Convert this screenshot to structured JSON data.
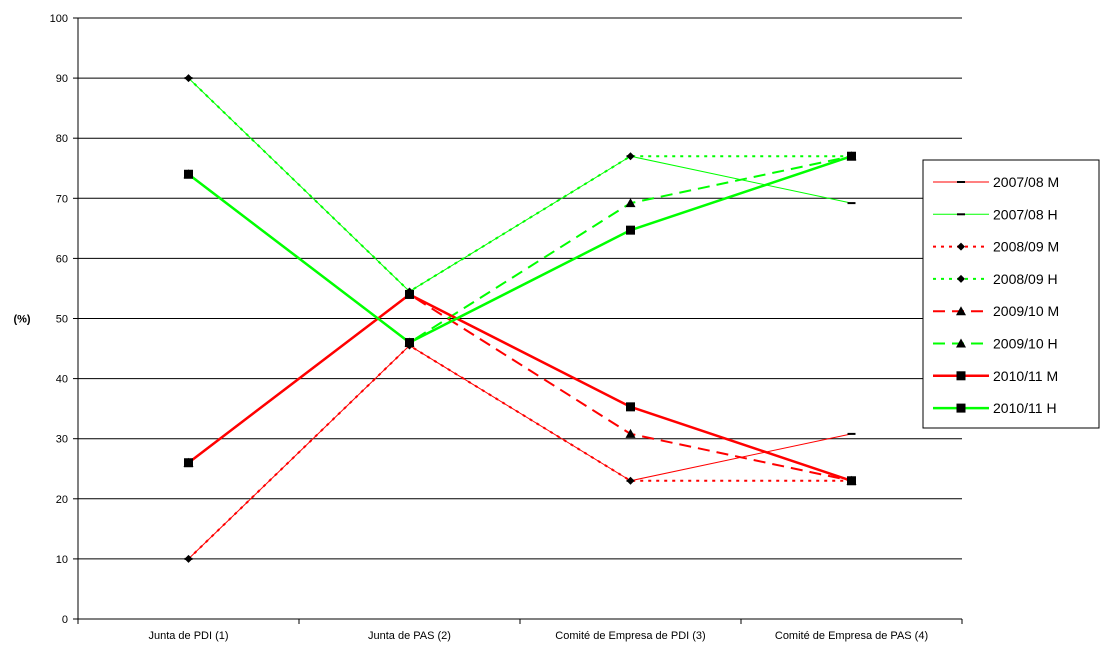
{
  "chart_data": {
    "type": "line",
    "title": "",
    "xlabel": "",
    "ylabel": "(%)",
    "ylim": [
      0,
      100
    ],
    "yticks": [
      0,
      10,
      20,
      30,
      40,
      50,
      60,
      70,
      80,
      90,
      100
    ],
    "grid": "horizontal",
    "legend_position": "right",
    "categories": [
      "Junta de PDI (1)",
      "Junta de PAS (2)",
      "Comité de Empresa de PDI (3)",
      "Comité de Empresa de PAS (4)"
    ],
    "series": [
      {
        "name": "2007/08 M",
        "values": [
          10,
          45.5,
          23,
          30.8
        ],
        "color": "#ff0000",
        "style": "solid-thin",
        "marker": "dash"
      },
      {
        "name": "2007/08 H",
        "values": [
          90,
          54.5,
          77,
          69.2
        ],
        "color": "#00ff00",
        "style": "solid-thin",
        "marker": "dash"
      },
      {
        "name": "2008/09 M",
        "values": [
          10,
          45.5,
          23,
          23
        ],
        "color": "#ff0000",
        "style": "dotted",
        "marker": "diamond"
      },
      {
        "name": "2008/09 H",
        "values": [
          90,
          54.5,
          77,
          77
        ],
        "color": "#00ff00",
        "style": "dotted",
        "marker": "diamond"
      },
      {
        "name": "2009/10 M",
        "values": [
          26,
          54,
          30.8,
          23
        ],
        "color": "#ff0000",
        "style": "dashed",
        "marker": "triangle"
      },
      {
        "name": "2009/10 H",
        "values": [
          74,
          46,
          69.2,
          77
        ],
        "color": "#00ff00",
        "style": "dashed",
        "marker": "triangle"
      },
      {
        "name": "2010/11 M",
        "values": [
          26,
          54,
          35.3,
          23
        ],
        "color": "#ff0000",
        "style": "solid-thick",
        "marker": "square"
      },
      {
        "name": "2010/11 H",
        "values": [
          74,
          46,
          64.7,
          77
        ],
        "color": "#00ff00",
        "style": "solid-thick",
        "marker": "square"
      }
    ]
  }
}
